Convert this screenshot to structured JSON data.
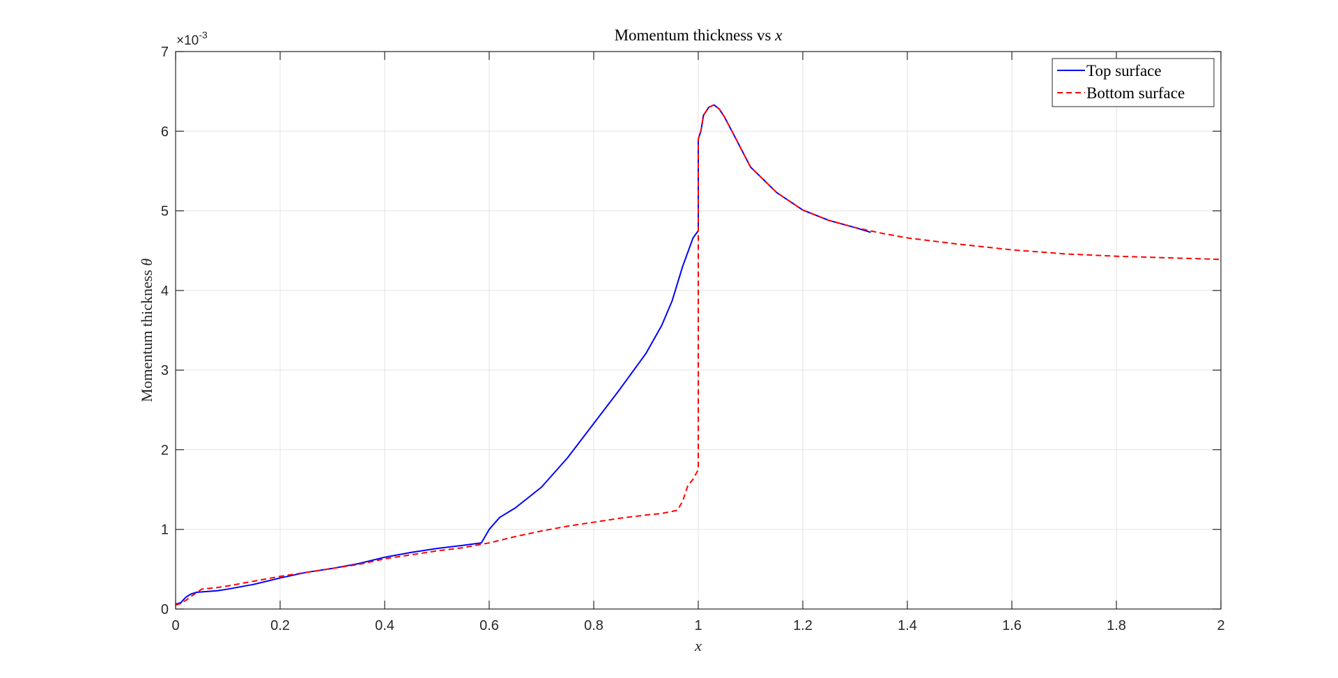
{
  "chart_data": {
    "type": "line",
    "title": "Momentum thickness vs x",
    "title_prefix": "Momentum thickness vs ",
    "title_var": "x",
    "xlabel": "x",
    "ylabel": "Momentum thickness θ",
    "ylabel_prefix": "Momentum thickness ",
    "ylabel_var": "θ",
    "xlim": [
      0,
      2
    ],
    "ylim": [
      0,
      0.007
    ],
    "x_ticks": [
      0,
      0.2,
      0.4,
      0.6,
      0.8,
      1,
      1.2,
      1.4,
      1.6,
      1.8,
      2
    ],
    "x_tick_labels": [
      "0",
      "0.2",
      "0.4",
      "0.6",
      "0.8",
      "1",
      "1.2",
      "1.4",
      "1.6",
      "1.8",
      "2"
    ],
    "y_ticks": [
      0,
      0.001,
      0.002,
      0.003,
      0.004,
      0.005,
      0.006,
      0.007
    ],
    "y_tick_labels": [
      "0",
      "1",
      "2",
      "3",
      "4",
      "5",
      "6",
      "7"
    ],
    "y_exponent_base": "×10",
    "y_exponent_power": "-3",
    "grid": true,
    "legend_position": "top-right",
    "series": [
      {
        "name": "Top surface",
        "color": "#0000ff",
        "style": "solid",
        "x": [
          0,
          0.01,
          0.02,
          0.03,
          0.04,
          0.06,
          0.08,
          0.1,
          0.15,
          0.2,
          0.25,
          0.3,
          0.35,
          0.4,
          0.45,
          0.5,
          0.55,
          0.585,
          0.6,
          0.62,
          0.65,
          0.7,
          0.75,
          0.8,
          0.85,
          0.9,
          0.93,
          0.95,
          0.97,
          0.99,
          1.0,
          1.0,
          1.005,
          1.01,
          1.02,
          1.03,
          1.04,
          1.05,
          1.07,
          1.1,
          1.15,
          1.2,
          1.25,
          1.3,
          1.33
        ],
        "y": [
          6e-05,
          8e-05,
          0.00015,
          0.00019,
          0.00021,
          0.00022,
          0.00023,
          0.00025,
          0.00031,
          0.00039,
          0.00046,
          0.00051,
          0.00057,
          0.00065,
          0.00071,
          0.00076,
          0.0008,
          0.00083,
          0.001,
          0.00115,
          0.00127,
          0.00153,
          0.0019,
          0.00233,
          0.00276,
          0.00321,
          0.00356,
          0.00387,
          0.0043,
          0.00466,
          0.00475,
          0.0059,
          0.006,
          0.0062,
          0.0063,
          0.00633,
          0.00628,
          0.00618,
          0.00593,
          0.00555,
          0.00523,
          0.00501,
          0.00488,
          0.00479,
          0.00473
        ]
      },
      {
        "name": "Bottom surface",
        "color": "#ff0000",
        "style": "dashed",
        "x": [
          0,
          0.01,
          0.02,
          0.03,
          0.05,
          0.08,
          0.1,
          0.15,
          0.2,
          0.25,
          0.3,
          0.35,
          0.4,
          0.45,
          0.5,
          0.55,
          0.6,
          0.65,
          0.7,
          0.75,
          0.8,
          0.85,
          0.9,
          0.93,
          0.96,
          0.97,
          0.98,
          0.99,
          1.0,
          1.0,
          1.005,
          1.01,
          1.02,
          1.03,
          1.04,
          1.05,
          1.07,
          1.1,
          1.15,
          1.2,
          1.25,
          1.3,
          1.35,
          1.4,
          1.5,
          1.6,
          1.7,
          1.8,
          1.9,
          2.0
        ],
        "y": [
          5e-05,
          7e-05,
          0.00011,
          0.00016,
          0.00025,
          0.00027,
          0.00029,
          0.00035,
          0.00041,
          0.00046,
          0.00051,
          0.00056,
          0.00063,
          0.00068,
          0.00073,
          0.00077,
          0.00083,
          0.00091,
          0.00098,
          0.00104,
          0.00109,
          0.00114,
          0.00118,
          0.0012,
          0.00124,
          0.00135,
          0.00155,
          0.00163,
          0.00175,
          0.0059,
          0.006,
          0.0062,
          0.0063,
          0.00633,
          0.00628,
          0.00618,
          0.00593,
          0.00555,
          0.00523,
          0.00501,
          0.00488,
          0.00479,
          0.00472,
          0.00466,
          0.00458,
          0.00451,
          0.00446,
          0.00443,
          0.00441,
          0.00439
        ]
      }
    ]
  }
}
